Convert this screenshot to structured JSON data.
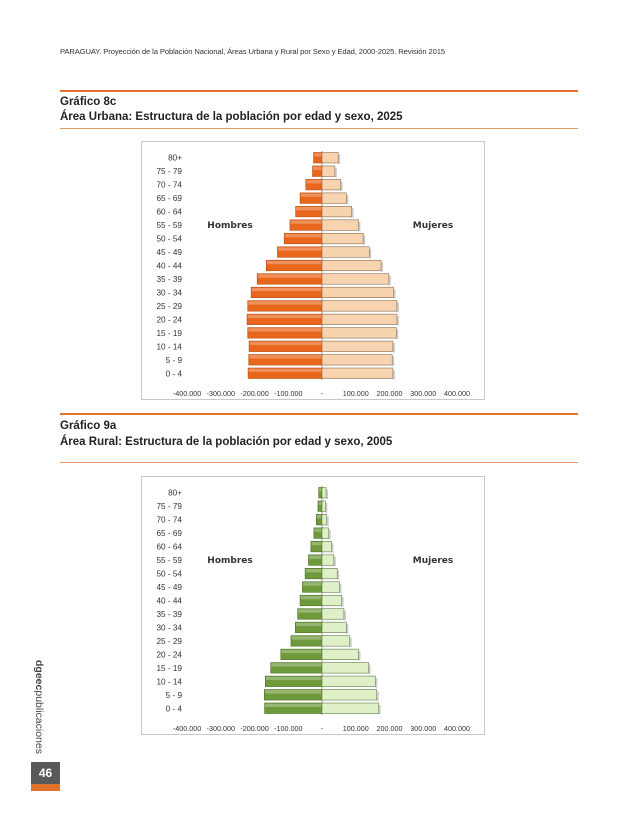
{
  "header": {
    "running_title": "PARAGUAY. Proyección de la Población Nacional, Áreas Urbana y Rural por Sexo y Edad, 2000-2025. Revisión 2015"
  },
  "figures": [
    {
      "label": "Gráfico 8c",
      "title": "Área Urbana: Estructura de la población por edad y sexo, 2025"
    },
    {
      "label": "Gráfico 9a",
      "title": "Área Rural: Estructura de la población por edad y sexo, 2005"
    }
  ],
  "colors": {
    "accent": "#e2722b",
    "urban_male": "#e8671d",
    "urban_female": "#f7d3b0",
    "rural_male": "#6f9a3c",
    "rural_female": "#dff0c8"
  },
  "chart_data": [
    {
      "type": "bar",
      "orientation": "horizontal-population-pyramid",
      "title": "Área Urbana: Estructura de la población por edad y sexo, 2025",
      "categories": [
        "0 - 4",
        "5 - 9",
        "10 - 14",
        "15 - 19",
        "20 - 24",
        "25 - 29",
        "30 - 34",
        "35 - 39",
        "40 - 44",
        "45 - 49",
        "50 - 54",
        "55 - 59",
        "60 - 64",
        "65 - 69",
        "70 - 74",
        "75 - 79",
        "80+"
      ],
      "series": [
        {
          "name": "Hombres",
          "values": [
            -219000,
            -217000,
            -216000,
            -220000,
            -222000,
            -220000,
            -210000,
            -192000,
            -165000,
            -132000,
            -112000,
            -95000,
            -78000,
            -65000,
            -48000,
            -28000,
            -25000
          ]
        },
        {
          "name": "Mujeres",
          "values": [
            210000,
            208000,
            210000,
            220000,
            222000,
            222000,
            212000,
            198000,
            175000,
            140000,
            122000,
            108000,
            88000,
            72000,
            55000,
            38000,
            48000
          ]
        }
      ],
      "xlim": [
        -400000,
        400000
      ],
      "xticks": [
        "-400.000",
        "-300.000",
        "-200.000",
        "-100.000",
        "-",
        "100.000",
        "200.000",
        "300.000",
        "400.000"
      ],
      "legend": {
        "left": "Hombres",
        "right": "Mujeres"
      }
    },
    {
      "type": "bar",
      "orientation": "horizontal-population-pyramid",
      "title": "Área Rural: Estructura de la población por edad y sexo, 2005",
      "categories": [
        "0 - 4",
        "5 - 9",
        "10 - 14",
        "15 - 19",
        "20 - 24",
        "25 - 29",
        "30 - 34",
        "35 - 39",
        "40 - 44",
        "45 - 49",
        "50 - 54",
        "55 - 59",
        "60 - 64",
        "65 - 69",
        "70 - 74",
        "75 - 79",
        "80+"
      ],
      "series": [
        {
          "name": "Hombres",
          "values": [
            -170000,
            -171000,
            -168000,
            -152000,
            -122000,
            -92000,
            -79000,
            -72000,
            -65000,
            -58000,
            -50000,
            -40000,
            -33000,
            -24000,
            -17000,
            -12000,
            -10000
          ]
        },
        {
          "name": "Mujeres",
          "values": [
            168000,
            162000,
            158000,
            138000,
            108000,
            82000,
            72000,
            65000,
            58000,
            52000,
            45000,
            35000,
            28000,
            20000,
            14000,
            10000,
            12000
          ]
        }
      ],
      "xlim": [
        -400000,
        400000
      ],
      "xticks": [
        "-400.000",
        "-300.000",
        "-200.000",
        "-100.000",
        "-",
        "100.000",
        "200.000",
        "300.000",
        "400.000"
      ],
      "legend": {
        "left": "Hombres",
        "right": "Mujeres"
      }
    }
  ],
  "sidebar": {
    "brand_bold": "dgeec",
    "brand_light": "publicaciones",
    "page_number": "46"
  }
}
